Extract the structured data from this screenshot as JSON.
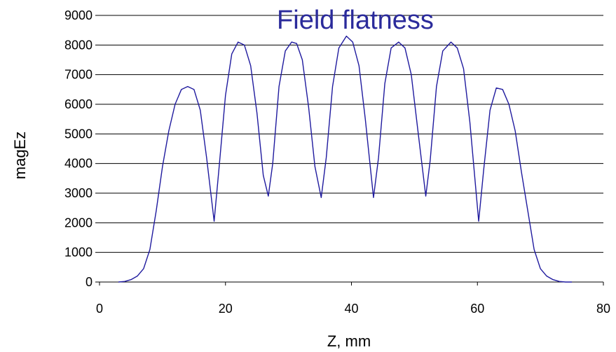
{
  "chart_data": {
    "type": "line",
    "title": "Field flatness",
    "xlabel": "Z, mm",
    "ylabel": "magEz",
    "xlim": [
      0,
      80
    ],
    "ylim": [
      0,
      9000
    ],
    "x_ticks": [
      0,
      20,
      40,
      60,
      80
    ],
    "y_ticks": [
      0,
      1000,
      2000,
      3000,
      4000,
      5000,
      6000,
      7000,
      8000,
      9000
    ],
    "grid": "horizontal",
    "colors": {
      "line": "#1f1a9e",
      "title": "#2b2b9b",
      "grid": "#000000"
    },
    "series": [
      {
        "x": [
          3,
          4,
          5,
          6,
          7,
          8,
          9,
          10,
          11,
          12,
          13,
          14,
          15,
          16,
          17,
          18.2,
          19,
          20,
          21,
          22,
          23,
          24,
          25,
          26,
          26.8,
          27.5,
          28.5,
          29.5,
          30.5,
          31.3,
          32.2,
          33.2,
          34.2,
          35.2,
          36,
          37,
          38,
          39.2,
          40.2,
          41.2,
          42.2,
          43.5,
          44.3,
          45.3,
          46.3,
          47.5,
          48.5,
          49.5,
          50.5,
          51.8,
          52.5,
          53.5,
          54.5,
          55.8,
          56.8,
          57.8,
          58.8,
          60.2,
          61,
          62,
          63,
          64,
          65,
          66,
          67,
          68,
          69,
          70,
          71,
          72,
          73,
          74,
          75
        ],
        "y": [
          0,
          20,
          80,
          200,
          450,
          1100,
          2400,
          3900,
          5100,
          6000,
          6500,
          6600,
          6500,
          5800,
          4200,
          2050,
          3900,
          6300,
          7700,
          8100,
          8000,
          7300,
          5700,
          3600,
          2900,
          4000,
          6600,
          7800,
          8100,
          8050,
          7500,
          5900,
          3900,
          2850,
          4200,
          6600,
          7900,
          8300,
          8100,
          7300,
          5500,
          2850,
          4200,
          6700,
          7900,
          8100,
          7900,
          7000,
          5200,
          2900,
          4100,
          6600,
          7800,
          8100,
          7900,
          7200,
          5400,
          2050,
          3800,
          5800,
          6550,
          6500,
          6000,
          5100,
          3700,
          2400,
          1100,
          450,
          200,
          80,
          20,
          0,
          0
        ]
      }
    ]
  }
}
